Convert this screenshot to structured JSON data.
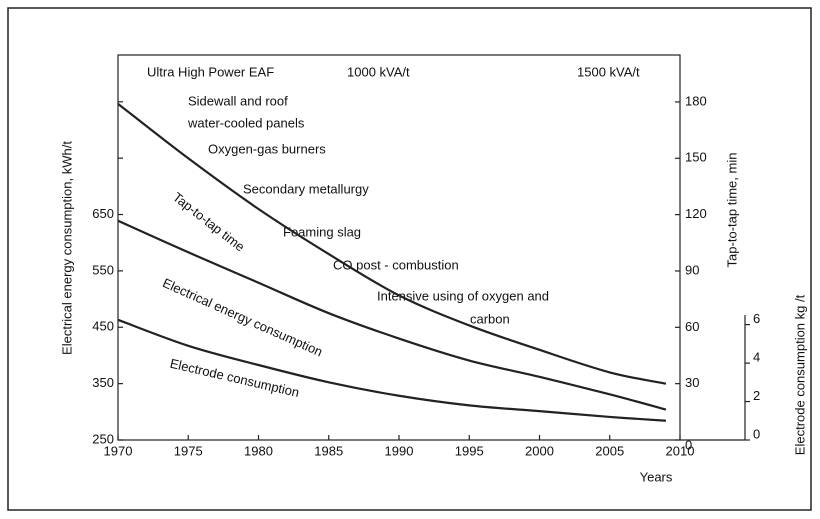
{
  "chart_data": {
    "type": "line",
    "x_label": "Years",
    "y_label": "Electrical energy consumption, kWh/t",
    "y2_label": "Tap-to-tap time, min",
    "y3_label": "Electrode consumption kg /t",
    "annotations": [
      "Ultra High Power EAF",
      "1000 kVA/t",
      "1500 kVA/t",
      "Sidewall and roof",
      "water-cooled panels",
      "Oxygen-gas burners",
      "Secondary metallurgy",
      "Foaming slag",
      "CO post - combustion",
      "Intensive using of oxygen and",
      "carbon"
    ],
    "x": [
      1970,
      1975,
      1980,
      1985,
      1990,
      1995,
      2000,
      2005,
      2009
    ],
    "xlim": [
      1970,
      2010
    ],
    "xticks": [
      1970,
      1975,
      1980,
      1985,
      1990,
      1995,
      2000,
      2005,
      2010
    ],
    "ylim": [
      250,
      933
    ],
    "yticks": [
      250,
      350,
      450,
      550,
      650
    ],
    "yticks_unlabeled": [
      750,
      850
    ],
    "y2lim": [
      0,
      205
    ],
    "y2ticks": [
      0,
      30,
      60,
      90,
      120,
      150,
      180
    ],
    "y3lim": [
      0,
      6.5
    ],
    "y3ticks": [
      0,
      2,
      4,
      6
    ],
    "series": [
      {
        "name": "Tap-to-tap time",
        "color": "#222222",
        "axis": "y2",
        "values": [
          179,
          150,
          123,
          99,
          77,
          61,
          48,
          36,
          30
        ]
      },
      {
        "name": "Electrical energy consumption",
        "color": "#222222",
        "axis": "y",
        "values": [
          639,
          583,
          529,
          475,
          430,
          391,
          362,
          331,
          304
        ]
      },
      {
        "name": "Electrode consumption",
        "color": "#222222",
        "axis": "y3",
        "values": [
          6.25,
          4.9,
          3.9,
          3.0,
          2.3,
          1.8,
          1.5,
          1.2,
          1.0
        ]
      }
    ]
  }
}
